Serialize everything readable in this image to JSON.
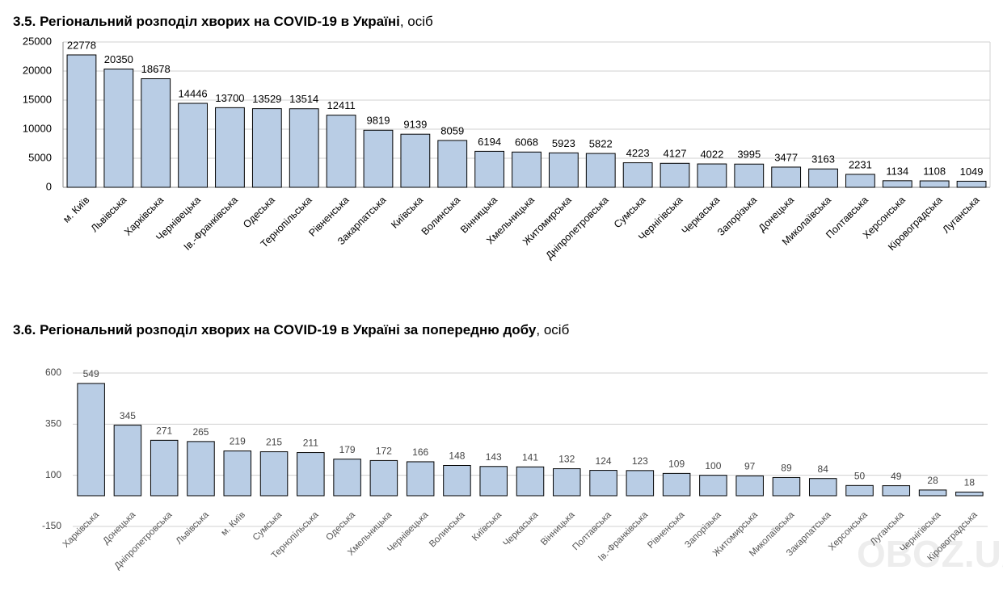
{
  "chart_data": [
    {
      "type": "bar",
      "title": "3.5.  Регіональний розподіл хворих на COVID-19 в Україні",
      "unit": ", осіб",
      "categories": [
        "м. Київ",
        "Львівська",
        "Харківська",
        "Чернівецька",
        "Ів.-Франківська",
        "Одеська",
        "Тернопільська",
        "Рівненська",
        "Закарпатська",
        "Київська",
        "Волинська",
        "Вінницька",
        "Хмельницька",
        "Житомирська",
        "Дніпропетровська",
        "Сумська",
        "Чернігівська",
        "Черкаська",
        "Запорізька",
        "Донецька",
        "Миколаївська",
        "Полтавська",
        "Херсонська",
        "Кіровоградська",
        "Луганська"
      ],
      "values": [
        22778,
        20350,
        18678,
        14446,
        13700,
        13529,
        13514,
        12411,
        9819,
        9139,
        8059,
        6194,
        6068,
        5923,
        5822,
        4223,
        4127,
        4022,
        3995,
        3477,
        3163,
        2231,
        1134,
        1108,
        1049
      ],
      "color": "#b9cde5",
      "ylim": [
        0,
        25000
      ],
      "yticks": [
        0,
        5000,
        10000,
        15000,
        20000,
        25000
      ],
      "grid": true
    },
    {
      "type": "bar",
      "title": "3.6.  Регіональний розподіл хворих на COVID-19 в Україні за попередню добу",
      "unit": ", осіб",
      "categories": [
        "Харківська",
        "Донецька",
        "Дніпропетровська",
        "Львівська",
        "м. Київ",
        "Сумська",
        "Тернопільська",
        "Одеська",
        "Хмельницька",
        "Чернівецька",
        "Волинська",
        "Київська",
        "Черкаська",
        "Вінницька",
        "Полтавська",
        "Ів.-Франківська",
        "Рівненська",
        "Запорізька",
        "Житомирська",
        "Миколаївська",
        "Закарпатська",
        "Херсонська",
        "Луганська",
        "Чернігівська",
        "Кіровоградська"
      ],
      "values": [
        549,
        345,
        271,
        265,
        219,
        215,
        211,
        179,
        172,
        166,
        148,
        143,
        141,
        132,
        124,
        123,
        109,
        100,
        97,
        89,
        84,
        50,
        49,
        28,
        18
      ],
      "color": "#b9cde5",
      "ylim": [
        -150,
        600
      ],
      "yticks": [
        -150,
        100,
        350,
        600
      ],
      "grid": true,
      "watermark": "OBOZ.UA"
    }
  ]
}
